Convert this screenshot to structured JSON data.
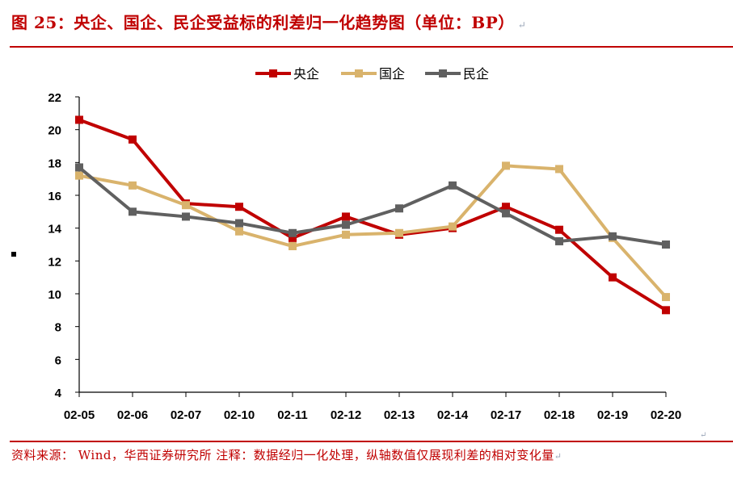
{
  "header": {
    "title": "图 25：央企、国企、民企受益标的利差归一化趋势图（单位：BP）",
    "return_mark": "↵"
  },
  "footer": {
    "source": "资料来源： Wind，华西证券研究所 注释：数据经归一化处理，纵轴数值仅展现利差的相对变化量",
    "return_mark": "↵",
    "chart_return_mark": "↵"
  },
  "chart_data": {
    "type": "line",
    "categories": [
      "02-05",
      "02-06",
      "02-07",
      "02-10",
      "02-11",
      "02-12",
      "02-13",
      "02-14",
      "02-17",
      "02-18",
      "02-19",
      "02-20"
    ],
    "ylim": [
      4,
      22
    ],
    "yticks": [
      4,
      6,
      8,
      10,
      12,
      14,
      16,
      18,
      20,
      22
    ],
    "legend_position": "top-center",
    "grid": false,
    "series": [
      {
        "name": "央企",
        "color": "#c00000",
        "values": [
          20.6,
          19.4,
          15.5,
          15.3,
          13.4,
          14.7,
          13.6,
          14.0,
          15.3,
          13.9,
          11.0,
          9.0
        ]
      },
      {
        "name": "国企",
        "color": "#d9b36c",
        "values": [
          17.2,
          16.6,
          15.4,
          13.8,
          12.9,
          13.6,
          13.7,
          14.1,
          17.8,
          17.6,
          13.4,
          9.8
        ]
      },
      {
        "name": "民企",
        "color": "#606060",
        "values": [
          17.7,
          15.0,
          14.7,
          14.3,
          13.7,
          14.2,
          15.2,
          16.6,
          14.9,
          13.2,
          13.5,
          13.0
        ]
      }
    ]
  }
}
